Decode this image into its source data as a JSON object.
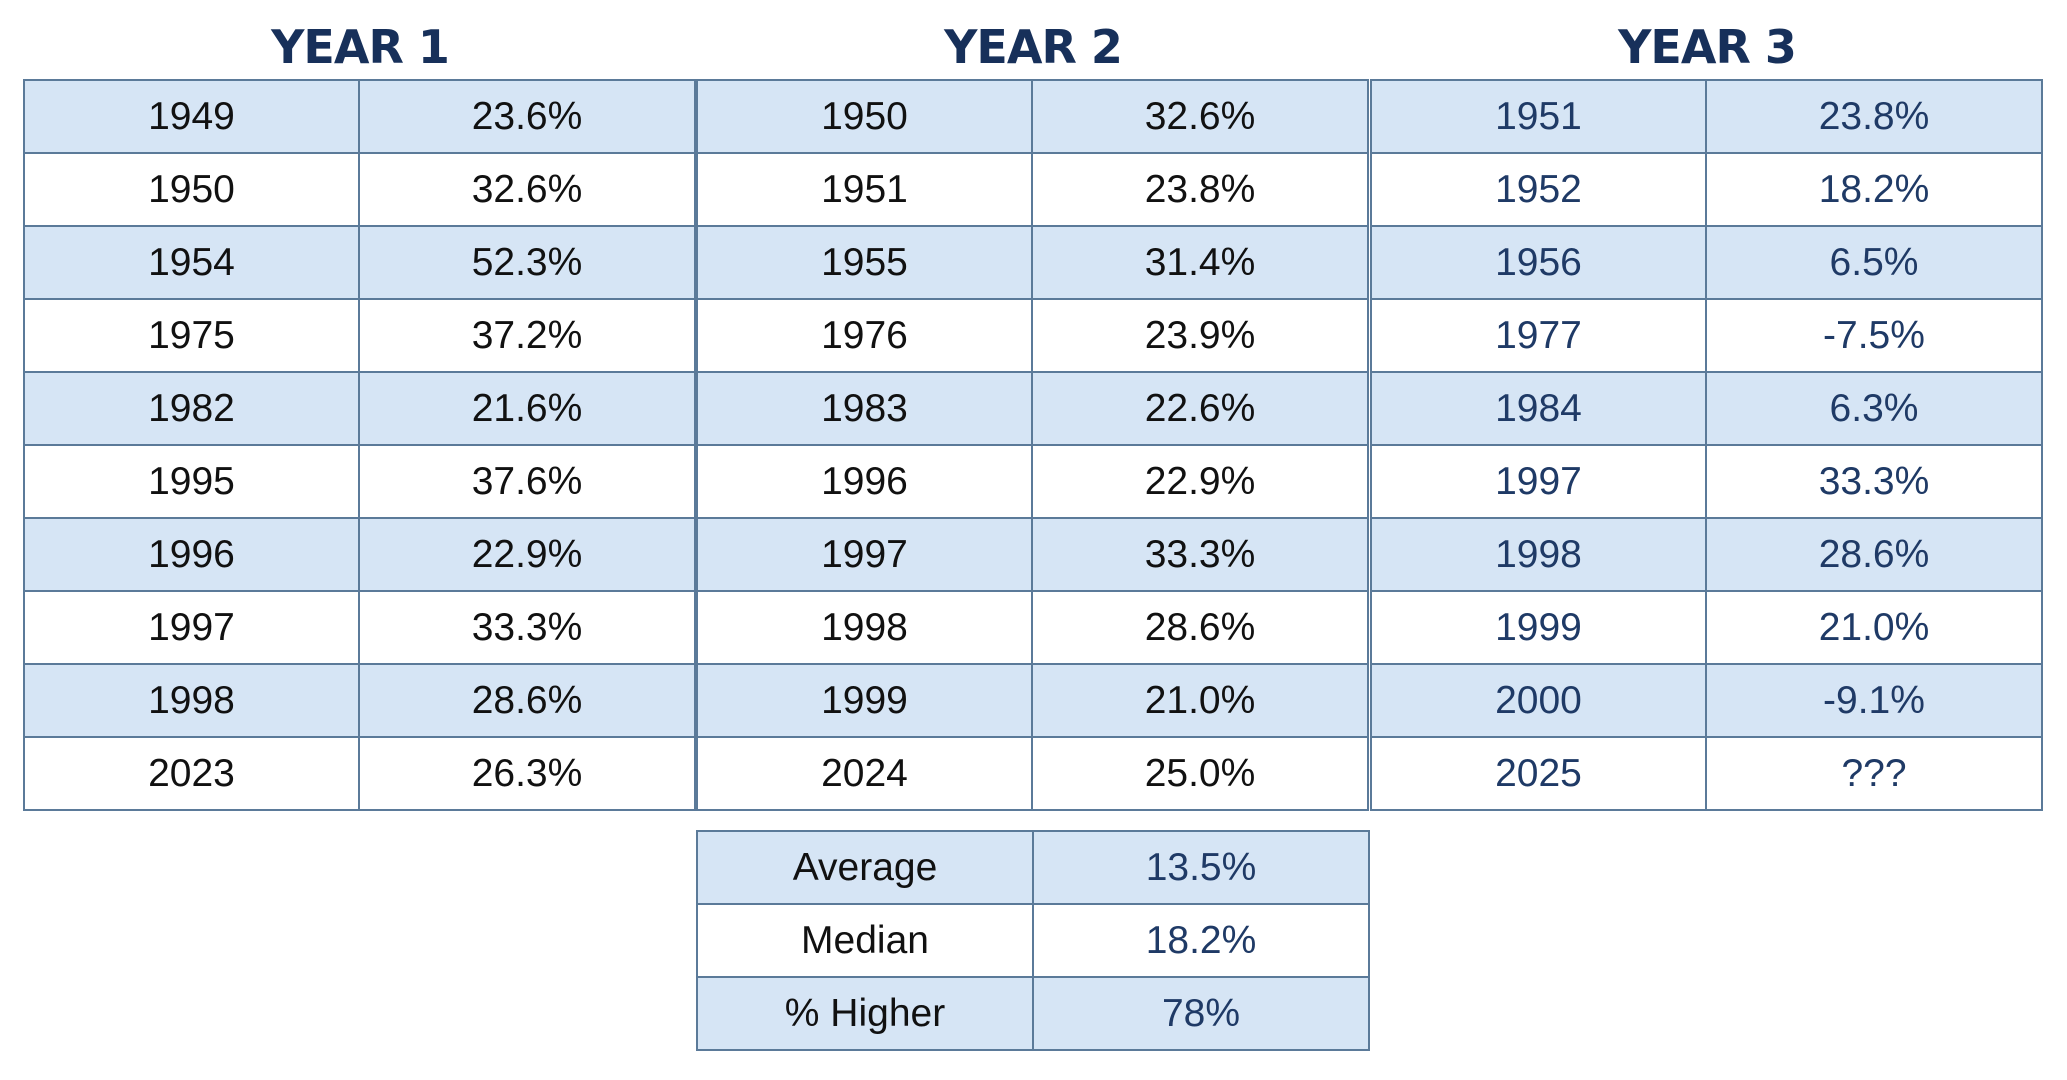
{
  "chart_data": {
    "type": "table",
    "tables": [
      {
        "title": "YEAR 1",
        "rows": [
          [
            "1949",
            "23.6%"
          ],
          [
            "1950",
            "32.6%"
          ],
          [
            "1954",
            "52.3%"
          ],
          [
            "1975",
            "37.2%"
          ],
          [
            "1982",
            "21.6%"
          ],
          [
            "1995",
            "37.6%"
          ],
          [
            "1996",
            "22.9%"
          ],
          [
            "1997",
            "33.3%"
          ],
          [
            "1998",
            "28.6%"
          ],
          [
            "2023",
            "26.3%"
          ]
        ]
      },
      {
        "title": "YEAR 2",
        "rows": [
          [
            "1950",
            "32.6%"
          ],
          [
            "1951",
            "23.8%"
          ],
          [
            "1955",
            "31.4%"
          ],
          [
            "1976",
            "23.9%"
          ],
          [
            "1983",
            "22.6%"
          ],
          [
            "1996",
            "22.9%"
          ],
          [
            "1997",
            "33.3%"
          ],
          [
            "1998",
            "28.6%"
          ],
          [
            "1999",
            "21.0%"
          ],
          [
            "2024",
            "25.0%"
          ]
        ]
      },
      {
        "title": "YEAR 3",
        "rows": [
          [
            "1951",
            "23.8%"
          ],
          [
            "1952",
            "18.2%"
          ],
          [
            "1956",
            "6.5%"
          ],
          [
            "1977",
            "-7.5%"
          ],
          [
            "1984",
            "6.3%"
          ],
          [
            "1997",
            "33.3%"
          ],
          [
            "1998",
            "28.6%"
          ],
          [
            "1999",
            "21.0%"
          ],
          [
            "2000",
            "-9.1%"
          ],
          [
            "2025",
            "???"
          ]
        ]
      }
    ],
    "summary": [
      [
        "Average",
        "13.5%"
      ],
      [
        "Median",
        "18.2%"
      ],
      [
        "% Higher",
        "78%"
      ]
    ],
    "colors": {
      "header_text": "#17305a",
      "row_shade": "#d6e5f5",
      "border": "#5b7a99",
      "year3_text": "#1f3a66"
    }
  }
}
